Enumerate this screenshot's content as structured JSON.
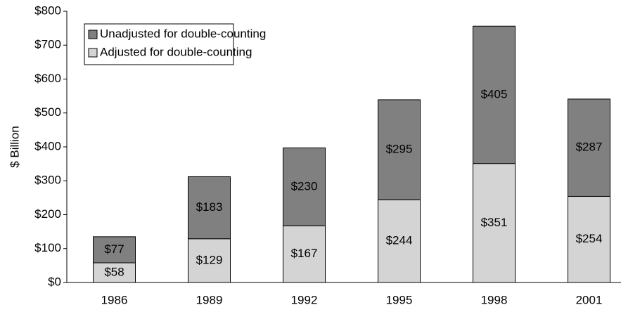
{
  "chart_data": {
    "type": "stacked_bar",
    "y_label": "$ Billion",
    "categories": [
      "1986",
      "1989",
      "1992",
      "1995",
      "1998",
      "2001"
    ],
    "series": [
      {
        "name": "Adjusted for double-counting",
        "color": "#d4d4d4",
        "values": [
          58,
          129,
          167,
          244,
          351,
          254
        ],
        "value_labels": [
          "$58",
          "$129",
          "$167",
          "$244",
          "$351",
          "$254"
        ]
      },
      {
        "name": "Unadjusted for double-counting",
        "color": "#808080",
        "values": [
          77,
          183,
          230,
          295,
          405,
          287
        ],
        "value_labels": [
          "$77",
          "$183",
          "$230",
          "$295",
          "$405",
          "$287"
        ]
      }
    ],
    "ylim": [
      0,
      800
    ],
    "yticks": [
      {
        "value": 0,
        "label": "$0"
      },
      {
        "value": 100,
        "label": "$100"
      },
      {
        "value": 200,
        "label": "$200"
      },
      {
        "value": 300,
        "label": "$300"
      },
      {
        "value": 400,
        "label": "$400"
      },
      {
        "value": 500,
        "label": "$500"
      },
      {
        "value": 600,
        "label": "$600"
      },
      {
        "value": 700,
        "label": "$700"
      },
      {
        "value": 800,
        "label": "$800"
      }
    ],
    "grid": false,
    "legend": "upper left"
  }
}
